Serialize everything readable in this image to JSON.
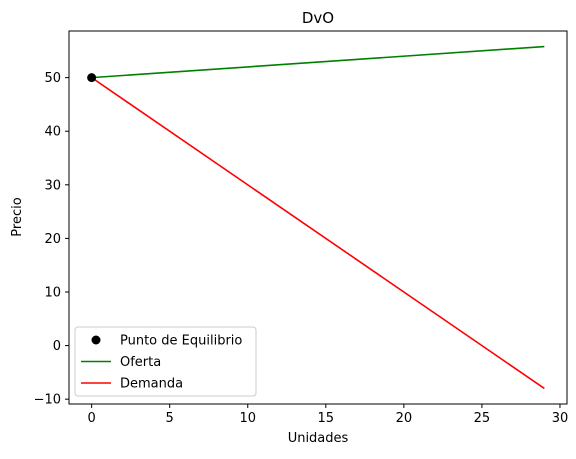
{
  "chart_data": {
    "type": "line",
    "title": "DvO",
    "xlabel": "Unidades",
    "ylabel": "Precio",
    "xlim": [
      -1.45,
      30.45
    ],
    "ylim": [
      -10.9,
      58.7
    ],
    "xticks": [
      0,
      5,
      10,
      15,
      20,
      25,
      30
    ],
    "yticks": [
      -10,
      0,
      10,
      20,
      30,
      40,
      50
    ],
    "xtick_labels": [
      "0",
      "5",
      "10",
      "15",
      "20",
      "25",
      "30"
    ],
    "ytick_labels": [
      "−10",
      "0",
      "10",
      "20",
      "30",
      "40",
      "50"
    ],
    "grid": false,
    "legend_position": "lower-left",
    "series": [
      {
        "name": "Punto de Equilibrio",
        "kind": "scatter",
        "color": "#000000",
        "x": [
          0
        ],
        "y": [
          50
        ]
      },
      {
        "name": "Oferta",
        "kind": "line",
        "color": "#008000",
        "x": [
          0,
          29
        ],
        "y": [
          50,
          55.8
        ]
      },
      {
        "name": "Demanda",
        "kind": "line",
        "color": "#ff0000",
        "x": [
          0,
          29
        ],
        "y": [
          50,
          -8
        ]
      }
    ]
  }
}
